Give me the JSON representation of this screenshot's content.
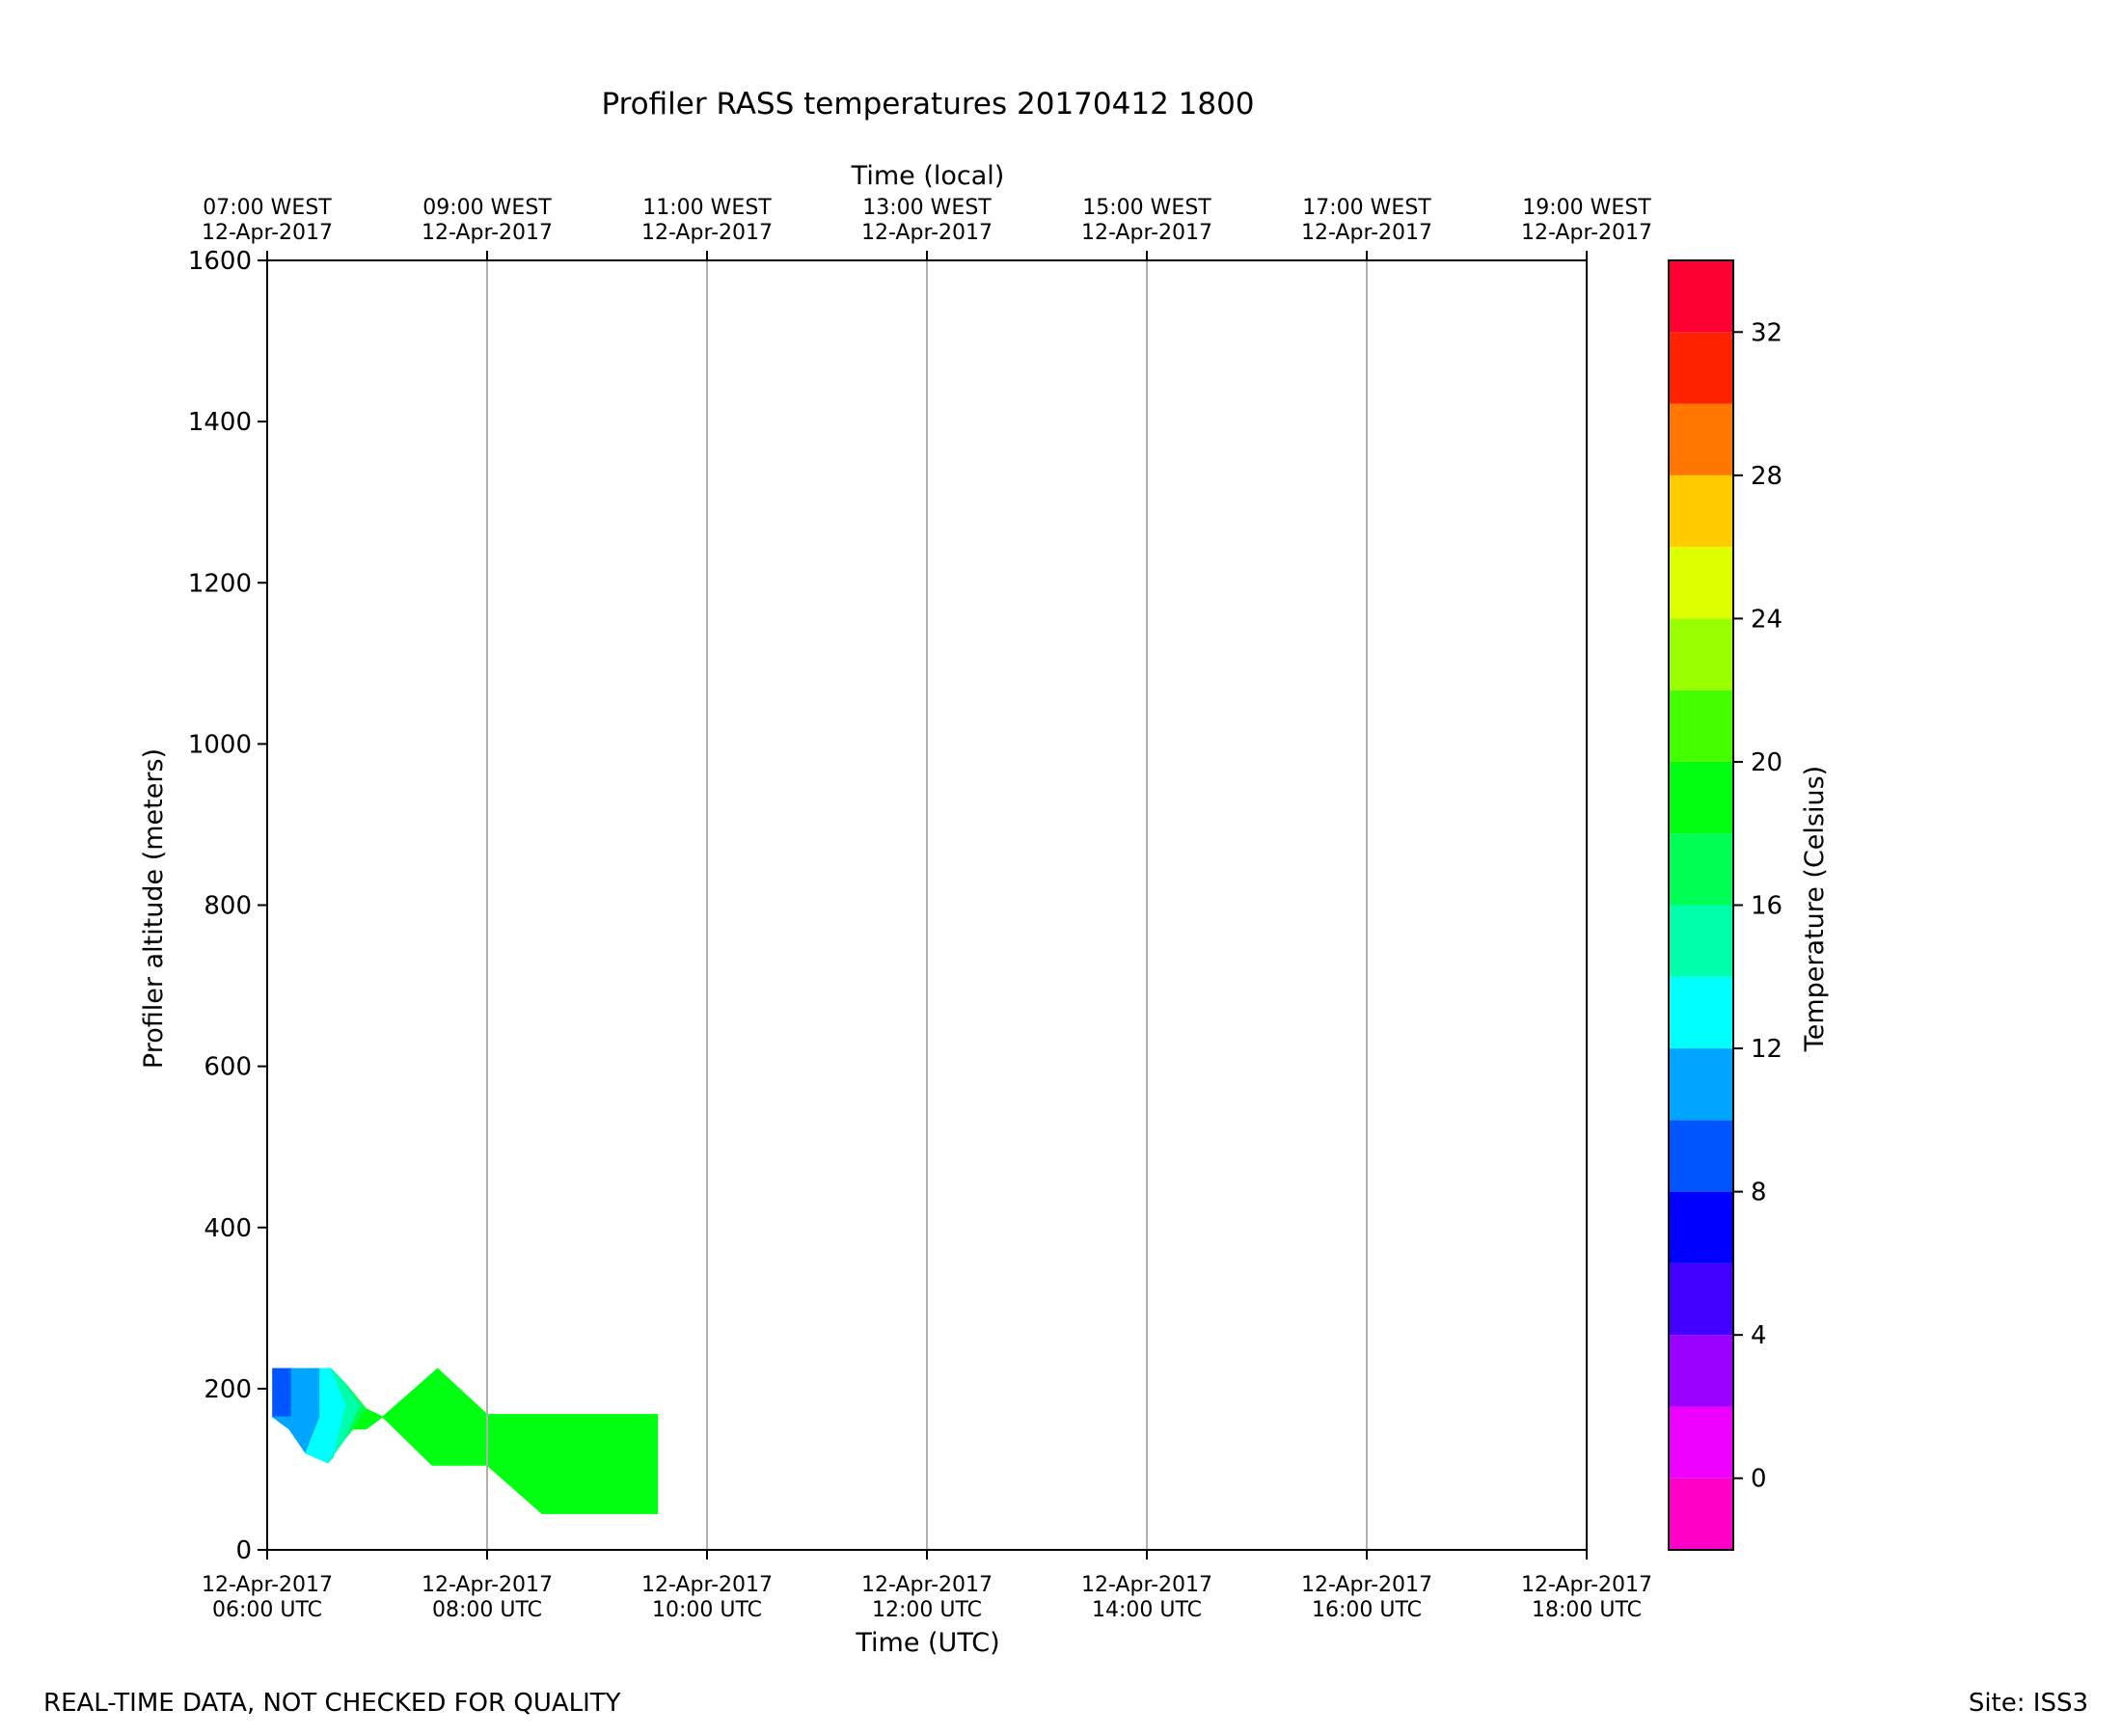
{
  "chart_data": {
    "type": "heatmap",
    "title": "Profiler RASS temperatures 20170412 1800",
    "xlabel": "Time (UTC)",
    "xlabel_top": "Time (local)",
    "ylabel": "Profiler altitude (meters)",
    "colorbar_label": "Temperature (Celsius)",
    "footer_left": "REAL-TIME DATA, NOT CHECKED FOR QUALITY",
    "footer_right": "Site: ISS3",
    "xlim_hours_utc": [
      6,
      18
    ],
    "ylim": [
      0,
      1600
    ],
    "grid": "vertical lines at bottom ticks",
    "x_ticks_bottom": [
      {
        "hour": 6,
        "date": "12-Apr-2017",
        "time": "06:00 UTC"
      },
      {
        "hour": 8,
        "date": "12-Apr-2017",
        "time": "08:00 UTC"
      },
      {
        "hour": 10,
        "date": "12-Apr-2017",
        "time": "10:00 UTC"
      },
      {
        "hour": 12,
        "date": "12-Apr-2017",
        "time": "12:00 UTC"
      },
      {
        "hour": 14,
        "date": "12-Apr-2017",
        "time": "14:00 UTC"
      },
      {
        "hour": 16,
        "date": "12-Apr-2017",
        "time": "16:00 UTC"
      },
      {
        "hour": 18,
        "date": "12-Apr-2017",
        "time": "18:00 UTC"
      }
    ],
    "x_ticks_top": [
      {
        "hour": 6,
        "time": "07:00 WEST",
        "date": "12-Apr-2017"
      },
      {
        "hour": 8,
        "time": "09:00 WEST",
        "date": "12-Apr-2017"
      },
      {
        "hour": 10,
        "time": "11:00 WEST",
        "date": "12-Apr-2017"
      },
      {
        "hour": 12,
        "time": "13:00 WEST",
        "date": "12-Apr-2017"
      },
      {
        "hour": 14,
        "time": "15:00 WEST",
        "date": "12-Apr-2017"
      },
      {
        "hour": 16,
        "time": "17:00 WEST",
        "date": "12-Apr-2017"
      },
      {
        "hour": 18,
        "time": "19:00 WEST",
        "date": "12-Apr-2017"
      }
    ],
    "y_ticks": [
      0,
      200,
      400,
      600,
      800,
      1000,
      1200,
      1400,
      1600
    ],
    "colorbar": {
      "range": [
        -2,
        34
      ],
      "levels": [
        {
          "from": -2,
          "to": 0,
          "color": "#ff00c8"
        },
        {
          "from": 0,
          "to": 2,
          "color": "#ee00ff"
        },
        {
          "from": 2,
          "to": 4,
          "color": "#9900ff"
        },
        {
          "from": 4,
          "to": 6,
          "color": "#4400ff"
        },
        {
          "from": 6,
          "to": 8,
          "color": "#0000ff"
        },
        {
          "from": 8,
          "to": 10,
          "color": "#0055ff"
        },
        {
          "from": 10,
          "to": 12,
          "color": "#00a5ff"
        },
        {
          "from": 12,
          "to": 14,
          "color": "#00ffff"
        },
        {
          "from": 14,
          "to": 16,
          "color": "#00ffaa"
        },
        {
          "from": 16,
          "to": 18,
          "color": "#00ff55"
        },
        {
          "from": 18,
          "to": 20,
          "color": "#00ff11"
        },
        {
          "from": 20,
          "to": 22,
          "color": "#44ff00"
        },
        {
          "from": 22,
          "to": 24,
          "color": "#99ff00"
        },
        {
          "from": 24,
          "to": 26,
          "color": "#ddff00"
        },
        {
          "from": 26,
          "to": 28,
          "color": "#ffcc00"
        },
        {
          "from": 28,
          "to": 30,
          "color": "#ff7700"
        },
        {
          "from": 30,
          "to": 32,
          "color": "#ff2200"
        },
        {
          "from": 32,
          "to": 34,
          "color": "#ff0033"
        }
      ],
      "ticks": [
        0,
        4,
        8,
        12,
        16,
        20,
        24,
        28,
        32
      ]
    },
    "regions": [
      {
        "name": "band-8-10",
        "color": "#0055ff",
        "points": [
          [
            6.05,
            225
          ],
          [
            6.22,
            225
          ],
          [
            6.22,
            165
          ],
          [
            6.05,
            165
          ]
        ]
      },
      {
        "name": "band-10-12",
        "color": "#00a5ff",
        "points": [
          [
            6.05,
            165
          ],
          [
            6.22,
            165
          ],
          [
            6.22,
            225
          ],
          [
            6.48,
            225
          ],
          [
            6.48,
            165
          ],
          [
            6.35,
            120
          ],
          [
            6.2,
            150
          ]
        ]
      },
      {
        "name": "band-12-14",
        "color": "#00ffff",
        "points": [
          [
            6.48,
            225
          ],
          [
            6.58,
            225
          ],
          [
            6.72,
            180
          ],
          [
            6.6,
            115
          ],
          [
            6.55,
            108
          ],
          [
            6.35,
            120
          ],
          [
            6.48,
            165
          ]
        ]
      },
      {
        "name": "band-14-16",
        "color": "#00ffaa",
        "points": [
          [
            6.58,
            225
          ],
          [
            6.72,
            205
          ],
          [
            6.85,
            180
          ],
          [
            6.72,
            140
          ],
          [
            6.55,
            108
          ],
          [
            6.6,
            115
          ],
          [
            6.72,
            180
          ]
        ]
      },
      {
        "name": "band-16-18",
        "color": "#00ff55",
        "points": [
          [
            6.72,
            205
          ],
          [
            6.9,
            175
          ],
          [
            6.78,
            150
          ],
          [
            6.72,
            140
          ],
          [
            6.85,
            180
          ]
        ]
      },
      {
        "name": "band-18-20-a",
        "color": "#00ff11",
        "points": [
          [
            6.9,
            175
          ],
          [
            7.05,
            165
          ],
          [
            6.9,
            150
          ],
          [
            6.78,
            150
          ]
        ]
      },
      {
        "name": "band-18-20-b",
        "color": "#00ff11",
        "points": [
          [
            7.05,
            165
          ],
          [
            7.55,
            225
          ],
          [
            8.0,
            168
          ],
          [
            9.55,
            168
          ],
          [
            9.55,
            45
          ],
          [
            8.5,
            45
          ],
          [
            8.0,
            105
          ],
          [
            7.5,
            105
          ]
        ]
      }
    ]
  }
}
